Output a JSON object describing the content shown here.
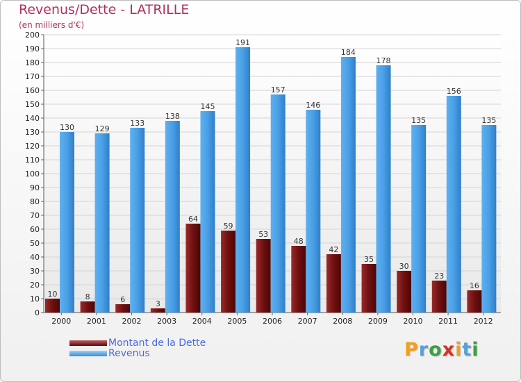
{
  "chart_data": {
    "type": "bar",
    "title": "Revenus/Dette - LATRILLE",
    "subtitle": "(en milliers d'€)",
    "categories": [
      "2000",
      "2001",
      "2002",
      "2003",
      "2004",
      "2005",
      "2006",
      "2007",
      "2008",
      "2009",
      "2010",
      "2011",
      "2012"
    ],
    "series": [
      {
        "name": "Montant de la Dette",
        "values": [
          10,
          8,
          6,
          3,
          64,
          59,
          53,
          48,
          42,
          35,
          30,
          23,
          16
        ],
        "color": "#7a1414"
      },
      {
        "name": "Revenus",
        "values": [
          130,
          129,
          133,
          138,
          145,
          191,
          157,
          146,
          184,
          178,
          135,
          156,
          135
        ],
        "color": "#4a9fe6"
      }
    ],
    "ylim": [
      0,
      200
    ],
    "ytick_step": 10,
    "grid": true,
    "legend_position": "bottom-left"
  },
  "logo": {
    "letters": [
      "P",
      "r",
      "o",
      "x",
      "i",
      "t",
      "i"
    ],
    "colors": [
      "#f0a020",
      "#5aa0d8",
      "#3aa040",
      "#d83020",
      "#f0a020",
      "#5aa0d8",
      "#3aa040"
    ]
  }
}
